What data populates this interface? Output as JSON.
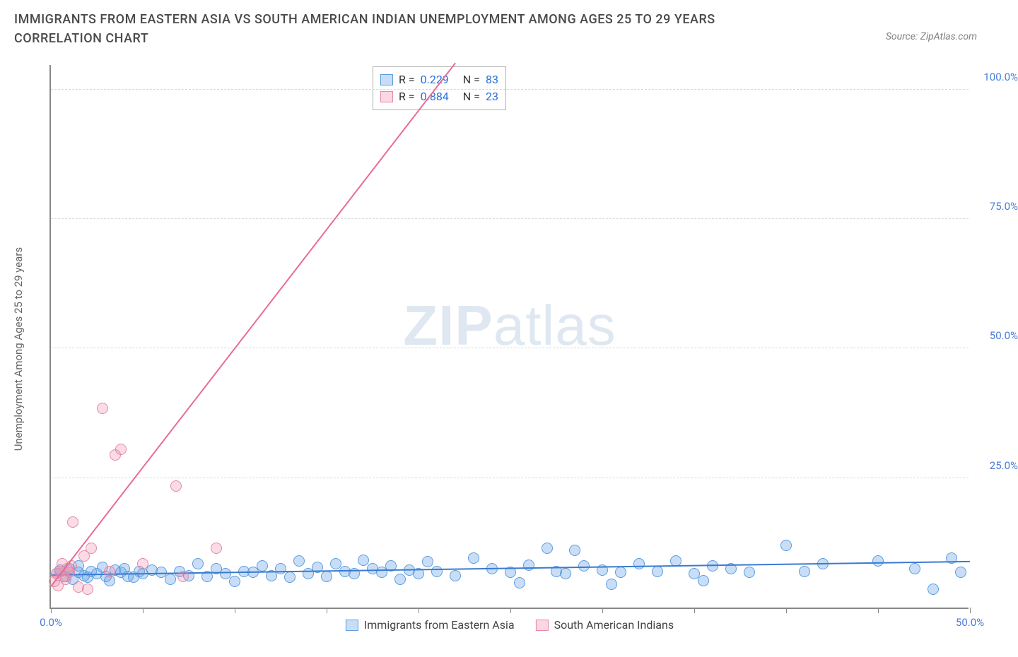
{
  "title": "IMMIGRANTS FROM EASTERN ASIA VS SOUTH AMERICAN INDIAN UNEMPLOYMENT AMONG AGES 25 TO 29 YEARS CORRELATION CHART",
  "source": "Source: ZipAtlas.com",
  "ylabel": "Unemployment Among Ages 25 to 29 years",
  "watermark_a": "ZIP",
  "watermark_b": "atlas",
  "chart": {
    "type": "scatter",
    "background_color": "#ffffff",
    "grid_color": "#d8d8d8",
    "axis_color": "#888888",
    "tick_font_color": "#4a7dd8",
    "tick_fontsize": 15,
    "label_fontsize": 15,
    "xlim": [
      0,
      50
    ],
    "ylim": [
      0,
      105
    ],
    "x_ticks": [
      0,
      5,
      10,
      15,
      20,
      25,
      30,
      35,
      40,
      45,
      50
    ],
    "x_tick_labels": {
      "0": "0.0%",
      "50": "50.0%"
    },
    "y_ticks": [
      25,
      50,
      75,
      100
    ],
    "y_tick_labels": {
      "25": "25.0%",
      "50": "50.0%",
      "75": "75.0%",
      "100": "100.0%"
    },
    "marker_radius": 8,
    "series": [
      {
        "name": "Immigrants from Eastern Asia",
        "color_fill": "rgba(100,160,230,0.35)",
        "color_stroke": "#5a9de0",
        "R": "0.229",
        "N": "83",
        "trend": {
          "x1": 0,
          "y1": 6.2,
          "x2": 50,
          "y2": 8.8,
          "color": "#3a7ad0"
        },
        "points": [
          [
            0.3,
            6.5
          ],
          [
            0.5,
            7.2
          ],
          [
            0.8,
            6.0
          ],
          [
            1.0,
            7.5
          ],
          [
            1.2,
            5.5
          ],
          [
            1.5,
            6.8
          ],
          [
            1.5,
            8.0
          ],
          [
            1.8,
            6.2
          ],
          [
            2.0,
            5.8
          ],
          [
            2.2,
            7.0
          ],
          [
            2.5,
            6.5
          ],
          [
            2.8,
            7.8
          ],
          [
            3.0,
            6.0
          ],
          [
            3.2,
            5.2
          ],
          [
            3.5,
            7.2
          ],
          [
            3.8,
            6.8
          ],
          [
            4.0,
            7.5
          ],
          [
            4.2,
            6.0
          ],
          [
            4.5,
            5.8
          ],
          [
            4.8,
            7.0
          ],
          [
            5.0,
            6.5
          ],
          [
            5.5,
            7.2
          ],
          [
            6.0,
            6.8
          ],
          [
            6.5,
            5.5
          ],
          [
            7.0,
            7.0
          ],
          [
            7.5,
            6.2
          ],
          [
            8.0,
            8.5
          ],
          [
            8.5,
            6.0
          ],
          [
            9.0,
            7.5
          ],
          [
            9.5,
            6.5
          ],
          [
            10.0,
            5.0
          ],
          [
            10.5,
            7.0
          ],
          [
            11.0,
            6.8
          ],
          [
            11.5,
            8.0
          ],
          [
            12.0,
            6.2
          ],
          [
            12.5,
            7.5
          ],
          [
            13.0,
            5.8
          ],
          [
            13.5,
            9.0
          ],
          [
            14.0,
            6.5
          ],
          [
            14.5,
            7.8
          ],
          [
            15.0,
            6.0
          ],
          [
            15.5,
            8.5
          ],
          [
            16.0,
            7.0
          ],
          [
            16.5,
            6.5
          ],
          [
            17.0,
            9.2
          ],
          [
            17.5,
            7.5
          ],
          [
            18.0,
            6.8
          ],
          [
            18.5,
            8.0
          ],
          [
            19.0,
            5.5
          ],
          [
            19.5,
            7.2
          ],
          [
            20.0,
            6.5
          ],
          [
            20.5,
            8.8
          ],
          [
            21.0,
            7.0
          ],
          [
            22.0,
            6.2
          ],
          [
            23.0,
            9.5
          ],
          [
            24.0,
            7.5
          ],
          [
            25.0,
            6.8
          ],
          [
            25.5,
            4.8
          ],
          [
            26.0,
            8.2
          ],
          [
            27.0,
            11.5
          ],
          [
            27.5,
            7.0
          ],
          [
            28.0,
            6.5
          ],
          [
            28.5,
            11.0
          ],
          [
            29.0,
            8.0
          ],
          [
            30.0,
            7.2
          ],
          [
            30.5,
            4.5
          ],
          [
            31.0,
            6.8
          ],
          [
            32.0,
            8.5
          ],
          [
            33.0,
            7.0
          ],
          [
            34.0,
            9.0
          ],
          [
            35.0,
            6.5
          ],
          [
            35.5,
            5.2
          ],
          [
            36.0,
            8.0
          ],
          [
            37.0,
            7.5
          ],
          [
            38.0,
            6.8
          ],
          [
            40.0,
            12.0
          ],
          [
            41.0,
            7.0
          ],
          [
            42.0,
            8.5
          ],
          [
            45.0,
            9.0
          ],
          [
            47.0,
            7.5
          ],
          [
            48.0,
            3.5
          ],
          [
            49.0,
            9.5
          ],
          [
            49.5,
            6.8
          ]
        ]
      },
      {
        "name": "South American Indians",
        "color_fill": "rgba(240,140,170,0.3)",
        "color_stroke": "#e688a8",
        "R": "0.884",
        "N": "23",
        "trend": {
          "x1": 0,
          "y1": 4.0,
          "x2": 22,
          "y2": 105,
          "color": "#e86b97"
        },
        "points": [
          [
            0.2,
            5.0
          ],
          [
            0.3,
            6.5
          ],
          [
            0.4,
            4.2
          ],
          [
            0.5,
            7.0
          ],
          [
            0.6,
            8.5
          ],
          [
            0.7,
            6.0
          ],
          [
            0.8,
            5.5
          ],
          [
            0.9,
            7.5
          ],
          [
            1.0,
            6.8
          ],
          [
            1.1,
            8.0
          ],
          [
            1.2,
            16.5
          ],
          [
            1.5,
            4.0
          ],
          [
            1.8,
            10.0
          ],
          [
            2.0,
            3.5
          ],
          [
            2.2,
            11.5
          ],
          [
            2.8,
            38.5
          ],
          [
            3.2,
            7.0
          ],
          [
            3.5,
            29.5
          ],
          [
            3.8,
            30.5
          ],
          [
            5.0,
            8.5
          ],
          [
            6.8,
            23.5
          ],
          [
            7.2,
            6.0
          ],
          [
            9.0,
            11.5
          ]
        ]
      }
    ],
    "corr_legend": {
      "x_offset": 455,
      "y_offset": 2
    },
    "bottom_legend": [
      {
        "swatch": "blue",
        "label": "Immigrants from Eastern Asia"
      },
      {
        "swatch": "pink",
        "label": "South American Indians"
      }
    ]
  }
}
